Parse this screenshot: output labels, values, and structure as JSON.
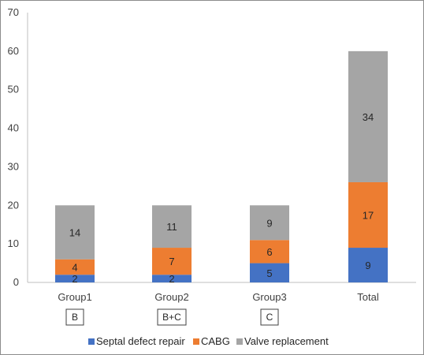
{
  "chart_data": {
    "type": "bar",
    "stacked": true,
    "categories": [
      "Group1",
      "Group2",
      "Group3",
      "Total"
    ],
    "category_tags": [
      "B",
      "B+C",
      "C",
      ""
    ],
    "series": [
      {
        "name": "Septal defect repair",
        "values": [
          2,
          2,
          5,
          9
        ],
        "color": "#4472c4"
      },
      {
        "name": "CABG",
        "values": [
          4,
          7,
          6,
          17
        ],
        "color": "#ed7d31"
      },
      {
        "name": "Valve replacement",
        "values": [
          14,
          11,
          9,
          34
        ],
        "color": "#a5a5a5"
      }
    ],
    "y_ticks": [
      0,
      10,
      20,
      30,
      40,
      50,
      60,
      70
    ],
    "ylim": [
      0,
      70
    ],
    "title": "",
    "xlabel": "",
    "ylabel": "",
    "legend_position": "bottom",
    "grid": false
  }
}
